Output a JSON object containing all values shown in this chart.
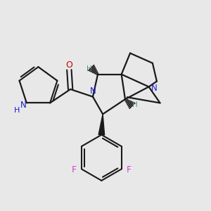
{
  "background_color": "#e8e8e8",
  "bond_color": "#1a1a1a",
  "nitrogen_color": "#1a1acc",
  "oxygen_color": "#cc0000",
  "fluorine_color": "#cc44cc",
  "hydrogen_color": "#4a8a8a",
  "figsize": [
    3.0,
    3.0
  ],
  "dpi": 100,
  "xlim": [
    0,
    10
  ],
  "ylim": [
    0,
    10
  ]
}
